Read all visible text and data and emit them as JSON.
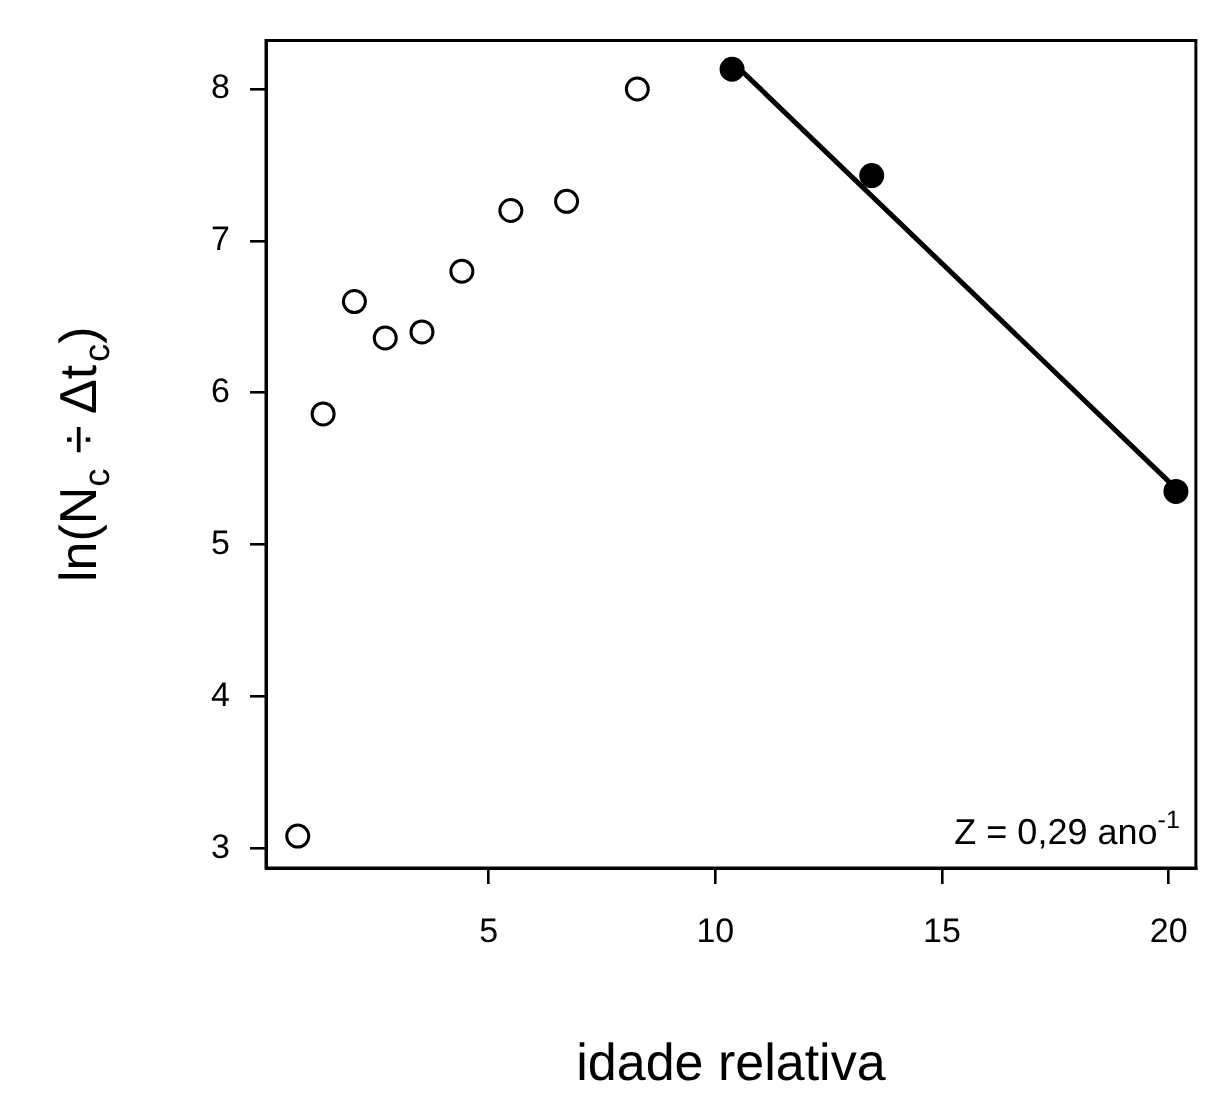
{
  "chart_data": {
    "type": "scatter",
    "xlabel": "idade relativa",
    "ylabel": "ln(N$_{c}$ ÷ Δt$_{c}$)",
    "xlim": [
      0.09,
      20.6
    ],
    "ylim": [
      2.87,
      8.32
    ],
    "xticks": [
      5,
      10,
      15,
      20
    ],
    "yticks": [
      3,
      4,
      5,
      6,
      7,
      8
    ],
    "grid": false,
    "legend": false,
    "marker": "circle",
    "series": [
      {
        "color": "#000000",
        "x": [
          0.79,
          1.35,
          2.04,
          2.72,
          3.53,
          4.41,
          5.49,
          6.72,
          8.28
        ],
        "values": [
          3.08,
          5.86,
          6.6,
          6.36,
          6.4,
          6.8,
          7.2,
          7.26,
          8.0
        ]
      },
      {
        "color": "#000000",
        "x": [
          10.37,
          13.45,
          20.16
        ],
        "values": [
          8.13,
          7.43,
          5.35
        ]
      },
      {
        "type": "line",
        "color": "#000000",
        "marker": "none",
        "line_style": "solid",
        "x": [
          10.44,
          20.09
        ],
        "values": [
          8.16,
          5.39
        ]
      }
    ],
    "annotations": [
      "Z = 0,29 ano$^{-1}$"
    ]
  }
}
